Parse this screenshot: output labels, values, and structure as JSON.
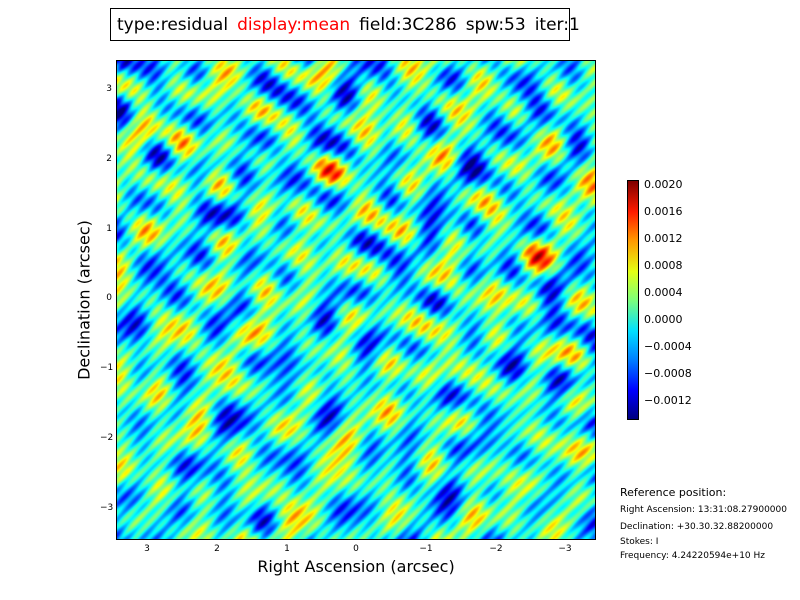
{
  "title": {
    "type": "type:residual",
    "display": "display:mean",
    "field": "field:3C286",
    "spw": "spw:53",
    "iter": "iter:1"
  },
  "colors": {
    "title_highlight": "#ff0000"
  },
  "chart_data": {
    "type": "heatmap",
    "title": "",
    "xlabel": "Right Ascension (arcsec)",
    "ylabel": "Declination (arcsec)",
    "xlim": [
      3.4,
      -3.4
    ],
    "ylim": [
      -3.4,
      3.4
    ],
    "x_ticks": [
      "3",
      "2",
      "1",
      "0",
      "−1",
      "−2",
      "−3"
    ],
    "y_ticks": [
      "3",
      "2",
      "1",
      "0",
      "−1",
      "−2",
      "−3"
    ],
    "colormap": "jet",
    "colorbar": {
      "vmin": -0.0014,
      "vmax": 0.0021,
      "ticks": [
        "0.0020",
        "0.0016",
        "0.0012",
        "0.0008",
        "0.0004",
        "0.0000",
        "−0.0004",
        "−0.0008",
        "−0.0012"
      ]
    },
    "grid": false
  },
  "reference": {
    "heading": "Reference position:",
    "ra": "Right Ascension: 13:31:08.27900000",
    "dec": "Declination: +30.30.32.88200000",
    "stokes": "Stokes: I",
    "freq": "Frequency: 4.24220594e+10 Hz"
  }
}
